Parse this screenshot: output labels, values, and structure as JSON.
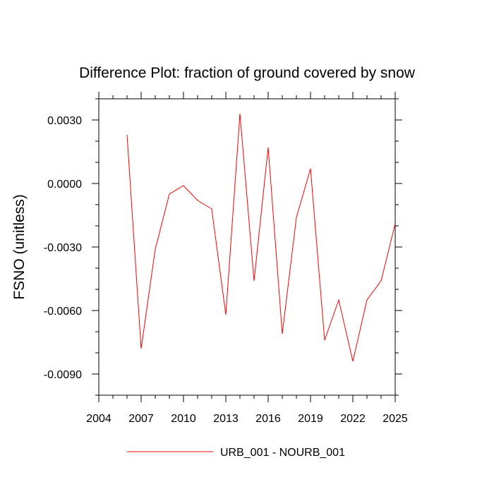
{
  "chart_data": {
    "type": "line",
    "title": "Difference Plot: fraction of ground covered by snow",
    "xlabel": "",
    "ylabel": "FSNO  (unitless)",
    "xlim": [
      2004,
      2025
    ],
    "ylim": [
      -0.01,
      0.004
    ],
    "x_ticks": [
      2004,
      2007,
      2010,
      2013,
      2016,
      2019,
      2022,
      2025
    ],
    "x_tick_labels": [
      "2004",
      "2007",
      "2010",
      "2013",
      "2016",
      "2019",
      "2022",
      "2025"
    ],
    "y_ticks": [
      0.003,
      0.0,
      -0.003,
      -0.006,
      -0.009
    ],
    "y_tick_labels": [
      "0.0030",
      "0.0000",
      "-0.0030",
      "-0.0060",
      "-0.0090"
    ],
    "grid": false,
    "legend_position": "bottom-center",
    "series": [
      {
        "name": "URB_001 - NOURB_001",
        "color": "#ff0000",
        "x": [
          2006,
          2007,
          2008,
          2009,
          2010,
          2011,
          2012,
          2013,
          2014,
          2015,
          2016,
          2017,
          2018,
          2019,
          2020,
          2021,
          2022,
          2023,
          2024,
          2025
        ],
        "y": [
          0.0023,
          -0.0078,
          -0.0031,
          -0.0005,
          -0.0001,
          -0.0008,
          -0.0012,
          -0.0062,
          0.0033,
          -0.0046,
          0.0017,
          -0.0071,
          -0.0016,
          0.0007,
          -0.0074,
          -0.0055,
          -0.0084,
          -0.0055,
          -0.0046,
          -0.0019
        ]
      }
    ]
  }
}
